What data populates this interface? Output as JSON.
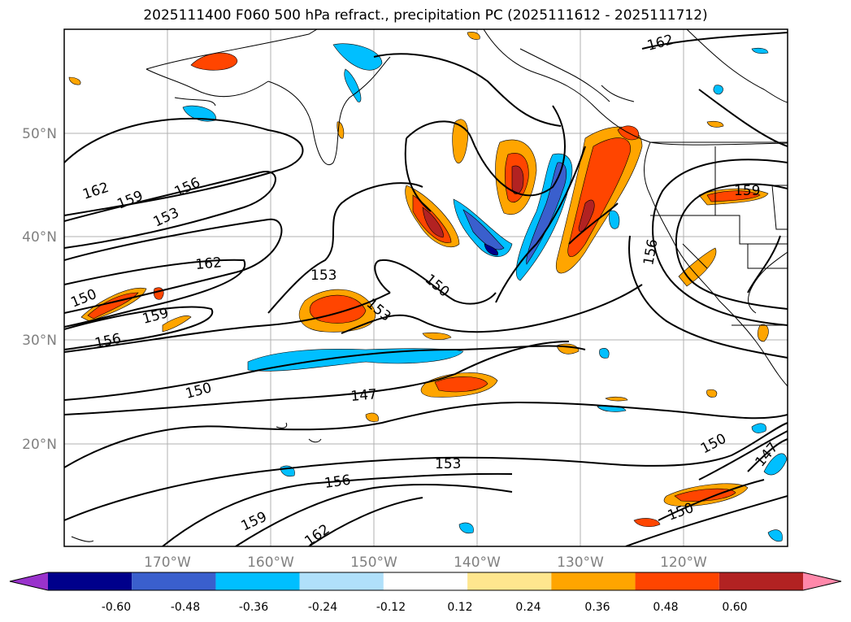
{
  "title": "2025111400 F060 500 hPa refract., precipitation PC (2025111612 - 2025111712)",
  "map": {
    "lat_labels": [
      "50°N",
      "40°N",
      "30°N",
      "20°N"
    ],
    "lon_labels": [
      "170°W",
      "160°W",
      "150°W",
      "140°W",
      "130°W",
      "120°W"
    ],
    "contour_labels": [
      {
        "text": "162"
      },
      {
        "text": "159"
      },
      {
        "text": "156"
      },
      {
        "text": "153"
      },
      {
        "text": "162"
      },
      {
        "text": "150"
      },
      {
        "text": "159"
      },
      {
        "text": "156"
      },
      {
        "text": "153"
      },
      {
        "text": "153"
      },
      {
        "text": "150"
      },
      {
        "text": "150"
      },
      {
        "text": "147"
      },
      {
        "text": "153"
      },
      {
        "text": "156"
      },
      {
        "text": "159"
      },
      {
        "text": "162"
      },
      {
        "text": "162"
      },
      {
        "text": "156"
      },
      {
        "text": "159"
      },
      {
        "text": "150"
      },
      {
        "text": "150"
      },
      {
        "text": "147"
      }
    ]
  },
  "colorbar": {
    "colors": [
      "#9932cc",
      "#00008b",
      "#3a5fcd",
      "#00bfff",
      "#b0e0fa",
      "#ffffff",
      "#fee68e",
      "#ffa500",
      "#ff4500",
      "#b22222",
      "#ff88aa"
    ],
    "labels": [
      "-0.60",
      "-0.48",
      "-0.36",
      "-0.24",
      "-0.12",
      "0.12",
      "0.24",
      "0.36",
      "0.48",
      "0.60"
    ]
  }
}
